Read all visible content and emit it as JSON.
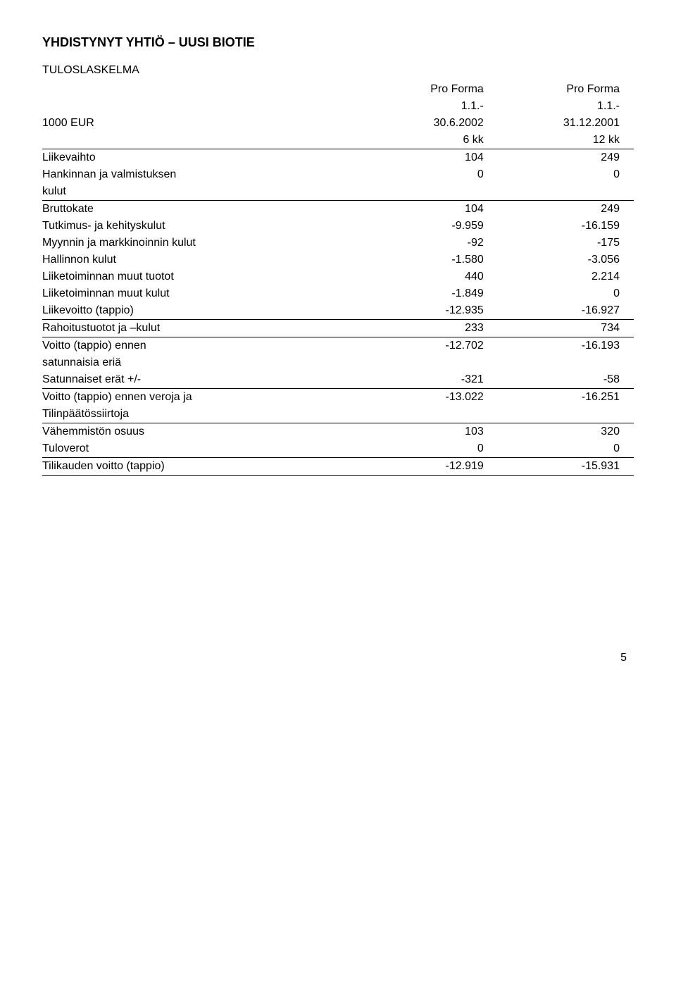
{
  "title": "YHDISTYNYT YHTIÖ – UUSI BIOTIE",
  "subtitle": "TULOSLASKELMA",
  "header": {
    "proforma": "Pro Forma",
    "period_start": "1.1.-",
    "row_label": "1000 EUR",
    "col1_end": "30.6.2002",
    "col2_end": "31.12.2001",
    "col1_dur": "6 kk",
    "col2_dur": "12 kk"
  },
  "rows": {
    "liikevaihto": {
      "label": "Liikevaihto",
      "v1": "104",
      "v2": "249"
    },
    "hankinnan": {
      "label1": "Hankinnan ja valmistuksen",
      "label2": "kulut",
      "v1": "0",
      "v2": "0"
    },
    "bruttokate": {
      "label": "Bruttokate",
      "v1": "104",
      "v2": "249"
    },
    "tutkimus": {
      "label": "Tutkimus- ja kehityskulut",
      "v1": "-9.959",
      "v2": "-16.159"
    },
    "myynnin": {
      "label": "Myynnin ja markkinoinnin kulut",
      "v1": "-92",
      "v2": "-175"
    },
    "hallinnon": {
      "label": "Hallinnon kulut",
      "v1": "-1.580",
      "v2": "-3.056"
    },
    "liiketuotot": {
      "label": "Liiketoiminnan muut tuotot",
      "v1": "440",
      "v2": "2.214"
    },
    "liikekulut": {
      "label": "Liiketoiminnan muut kulut",
      "v1": "-1.849",
      "v2": "0"
    },
    "liikevoitto": {
      "label": "Liikevoitto (tappio)",
      "v1": "-12.935",
      "v2": "-16.927"
    },
    "rahoitus": {
      "label": "Rahoitustuotot ja –kulut",
      "v1": "233",
      "v2": "734"
    },
    "voitto_ennen_sat": {
      "label1": "Voitto (tappio) ennen",
      "label2": "satunnaisia eriä",
      "v1": "-12.702",
      "v2": "-16.193"
    },
    "satunnaiset": {
      "label": "Satunnaiset erät +/-",
      "v1": "-321",
      "v2": "-58"
    },
    "voitto_ennen_vero": {
      "label1": "Voitto (tappio) ennen veroja ja",
      "label2": "Tilinpäätössiirtoja",
      "v1": "-13.022",
      "v2": "-16.251"
    },
    "vahemmiston": {
      "label": "Vähemmistön osuus",
      "v1": "103",
      "v2": "320"
    },
    "tuloverot": {
      "label": "Tuloverot",
      "v1": "0",
      "v2": "0"
    },
    "tilikauden": {
      "label": "Tilikauden voitto (tappio)",
      "v1": "-12.919",
      "v2": "-15.931"
    }
  },
  "page_number": "5"
}
